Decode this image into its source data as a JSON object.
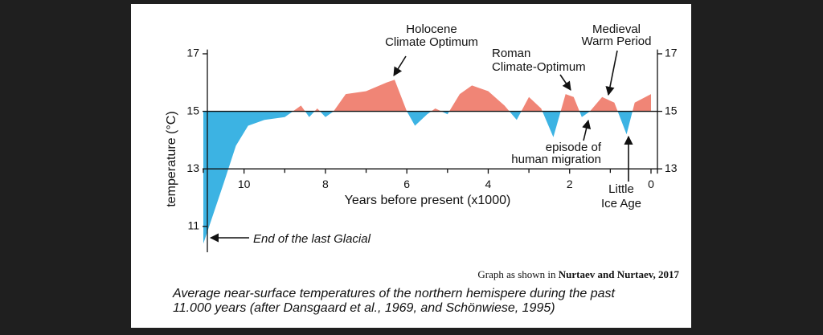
{
  "chart_data": {
    "type": "area",
    "xlabel": "Years before present (x1000)",
    "ylabel": "temperature (°C)",
    "x": [
      11,
      10.5,
      10.2,
      9.9,
      9.5,
      9,
      8.8,
      8.6,
      8.4,
      8.2,
      8,
      7.8,
      7.5,
      7,
      6.5,
      6.3,
      6,
      5.8,
      5.5,
      5.3,
      5,
      4.7,
      4.4,
      4,
      3.6,
      3.3,
      3,
      2.7,
      2.4,
      2.1,
      1.9,
      1.7,
      1.5,
      1.2,
      0.9,
      0.6,
      0.4,
      0
    ],
    "values": [
      10.4,
      12.5,
      13.8,
      14.5,
      14.7,
      14.8,
      15.0,
      15.2,
      14.8,
      15.1,
      14.8,
      15.0,
      15.6,
      15.7,
      16.0,
      16.1,
      15.0,
      14.5,
      14.9,
      15.1,
      14.9,
      15.6,
      15.9,
      15.7,
      15.2,
      14.7,
      15.5,
      15.1,
      14.1,
      15.6,
      15.5,
      14.8,
      15.0,
      15.5,
      15.3,
      14.2,
      15.3,
      15.6
    ],
    "baseline": 15,
    "color_above": "#f08576",
    "color_below": "#3cb3e3",
    "xlim": [
      11,
      0
    ],
    "xticks": [
      10,
      8,
      6,
      4,
      2,
      0
    ],
    "xminorticks": [
      11,
      9,
      7,
      5,
      3,
      1
    ],
    "ylim": [
      10.1,
      17.15
    ],
    "yticks": [
      17,
      15,
      13,
      11
    ],
    "y2lim": [
      10.1,
      17.15
    ],
    "y2ticks": [
      17,
      15,
      13
    ],
    "annotations": [
      {
        "text": [
          "Holocene",
          "Climate Optimum"
        ]
      },
      {
        "text": [
          "Roman",
          "Climate-Optimum"
        ]
      },
      {
        "text": [
          "Medieval",
          "Warm Period"
        ]
      },
      {
        "text": [
          "episode of",
          "human migration"
        ]
      },
      {
        "text": [
          "Little",
          "Ice Age"
        ]
      },
      {
        "text": [
          "End of the last Glacial"
        ]
      }
    ]
  },
  "caption": {
    "prefix": "Graph as shown in",
    "source": "Nurtaev and Nurtaev, 2017"
  },
  "description": [
    "Average near-surface temperatures of the northern hemispere during the past",
    "11.000 years (after Dansgaard et al., 1969, and Schönwiese, 1995)"
  ]
}
